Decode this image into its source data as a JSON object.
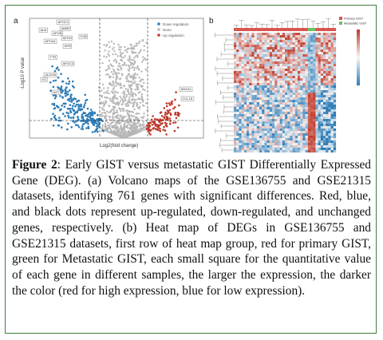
{
  "panel_a": {
    "letter": "a",
    "xlabel": "Log2(fold change)",
    "ylabel": "-Log10 P value",
    "legend": [
      "Down regulation",
      "None",
      "Up regulation"
    ],
    "colors": {
      "down": "#2e7db8",
      "none": "#b7b7b7",
      "up": "#c0392b"
    },
    "gene_labels": [
      "APOC1",
      "ALB",
      "AMBP",
      "APOB",
      "APOH",
      "APOA1",
      "HPR",
      "TTR",
      "APOC3",
      "ALDOB",
      "GC",
      "AGT",
      "FGB",
      "ANXA1",
      "CCL18"
    ]
  },
  "panel_b": {
    "letter": "b",
    "legend": [
      "Primary GIST",
      "Metastatic GIST"
    ],
    "group_colors": {
      "primary": "#d9534f",
      "metastatic": "#6fbf5f"
    },
    "heat_colors": {
      "high": "#c0392b",
      "mid": "#f5f5f5",
      "low": "#2e7db8"
    }
  },
  "caption": {
    "label": "Figure 2",
    "text": ": Early GIST versus metastatic GIST Differentially Expressed Gene (DEG). (a) Volcano maps of the GSE136755 and GSE21315 datasets, identifying 761 genes with significant differences. Red, blue, and black dots represent up-regulated, down-regulated, and unchanged genes, respectively. (b) Heat map of DEGs in GSE136755 and GSE21315 datasets, first row of heat map group, red for primary GIST, green for Metastatic GIST, each small square for the quantitative value of each gene in different samples, the larger the expression, the darker the color (red for high expression, blue for low expression)."
  }
}
